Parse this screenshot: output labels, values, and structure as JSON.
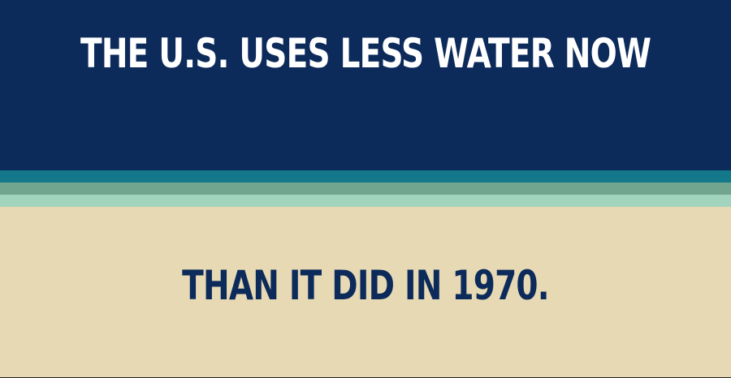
{
  "headline": {
    "line1": "THE U.S. USES LESS WATER NOW",
    "line2": "THAN IT DID IN 1970."
  },
  "colors": {
    "top_background": "#0c2a5a",
    "stripe_teal": "#12788a",
    "stripe_sage": "#72a58f",
    "stripe_mint": "#a2d3bc",
    "bottom_background": "#e6d9b4",
    "line1_text": "#ffffff",
    "line2_text": "#0c2a5a"
  }
}
